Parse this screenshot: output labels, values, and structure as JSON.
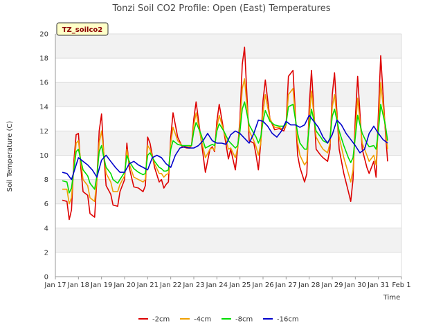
{
  "chart_data": {
    "type": "line",
    "title": "Tonzi Soil CO2 Profile: Open (East) Temperatures",
    "xlabel": "Time",
    "ylabel": "Soil Temperature (C)",
    "ylim": [
      0,
      20
    ],
    "yticks": [
      0,
      2,
      4,
      6,
      8,
      10,
      12,
      14,
      16,
      18,
      20
    ],
    "xlim": [
      0,
      15
    ],
    "xticks": [
      {
        "x": 0,
        "label": "Jan 17"
      },
      {
        "x": 1,
        "label": "Jan 18"
      },
      {
        "x": 2,
        "label": "Jan 19"
      },
      {
        "x": 3,
        "label": "Jan 20"
      },
      {
        "x": 4,
        "label": "Jan 21"
      },
      {
        "x": 5,
        "label": "Jan 22"
      },
      {
        "x": 6,
        "label": "Jan 23"
      },
      {
        "x": 7,
        "label": "Jan 24"
      },
      {
        "x": 8,
        "label": "Jan 25"
      },
      {
        "x": 9,
        "label": "Jan 26"
      },
      {
        "x": 10,
        "label": "Jan 27"
      },
      {
        "x": 11,
        "label": "Jan 28"
      },
      {
        "x": 12,
        "label": "Jan 29"
      },
      {
        "x": 13,
        "label": "Jan 30"
      },
      {
        "x": 14,
        "label": "Jan 31"
      },
      {
        "x": 15,
        "label": "Feb 1"
      }
    ],
    "grid": "horizontal bands",
    "legend_position": "bottom",
    "badge": "TZ_soilco2",
    "series": [
      {
        "name": "-2cm",
        "color": "#dd0000",
        "x": [
          0.3,
          0.5,
          0.6,
          0.7,
          0.8,
          0.9,
          1.0,
          1.1,
          1.2,
          1.4,
          1.5,
          1.7,
          1.8,
          1.9,
          2.0,
          2.1,
          2.2,
          2.4,
          2.5,
          2.7,
          2.8,
          3.0,
          3.1,
          3.2,
          3.4,
          3.6,
          3.8,
          3.9,
          4.0,
          4.1,
          4.3,
          4.5,
          4.6,
          4.7,
          4.8,
          4.9,
          5.0,
          5.1,
          5.3,
          5.5,
          5.7,
          5.8,
          5.9,
          6.0,
          6.1,
          6.3,
          6.5,
          6.7,
          6.8,
          6.9,
          7.0,
          7.1,
          7.3,
          7.5,
          7.6,
          7.8,
          7.9,
          8.0,
          8.1,
          8.2,
          8.4,
          8.6,
          8.7,
          8.8,
          8.9,
          9.0,
          9.1,
          9.3,
          9.5,
          9.7,
          9.8,
          9.9,
          10.0,
          10.1,
          10.3,
          10.5,
          10.6,
          10.8,
          10.9,
          11.0,
          11.1,
          11.3,
          11.5,
          11.6,
          11.8,
          11.9,
          12.0,
          12.1,
          12.3,
          12.5,
          12.7,
          12.8,
          12.9,
          13.0,
          13.1,
          13.3,
          13.5,
          13.6,
          13.8,
          13.9,
          14.0,
          14.1,
          14.3,
          14.4
        ],
        "y": [
          6.3,
          6.2,
          4.7,
          5.5,
          9.5,
          11.7,
          11.8,
          9.0,
          7.0,
          6.7,
          5.2,
          4.9,
          8.0,
          12.0,
          13.4,
          10.0,
          7.5,
          6.8,
          5.9,
          5.8,
          7.0,
          8.0,
          11.0,
          9.0,
          7.4,
          7.3,
          7.0,
          7.5,
          11.5,
          11.0,
          9.0,
          7.8,
          8.0,
          7.3,
          7.6,
          7.8,
          11.5,
          13.5,
          11.5,
          10.7,
          10.6,
          10.6,
          10.8,
          13.0,
          14.4,
          11.5,
          8.6,
          10.5,
          10.7,
          10.3,
          12.8,
          14.2,
          12.0,
          9.7,
          10.5,
          8.8,
          10.5,
          13.0,
          17.5,
          18.9,
          11.2,
          11.0,
          10.0,
          8.8,
          11.0,
          14.5,
          16.2,
          13.0,
          12.1,
          12.2,
          12.1,
          12.0,
          12.5,
          16.5,
          17.0,
          10.0,
          9.0,
          7.8,
          8.5,
          14.0,
          17.0,
          10.5,
          10.0,
          9.8,
          9.5,
          10.5,
          15.0,
          16.8,
          10.5,
          8.5,
          7.0,
          6.2,
          8.0,
          13.0,
          16.5,
          10.5,
          9.0,
          8.5,
          9.5,
          8.2,
          13.5,
          18.2,
          12.0,
          9.5
        ]
      },
      {
        "name": "-4cm",
        "color": "#f0a000",
        "x": [
          0.3,
          0.5,
          0.6,
          0.7,
          0.8,
          0.9,
          1.0,
          1.1,
          1.2,
          1.4,
          1.5,
          1.7,
          1.8,
          1.9,
          2.0,
          2.1,
          2.2,
          2.4,
          2.5,
          2.7,
          2.8,
          3.0,
          3.1,
          3.2,
          3.4,
          3.6,
          3.8,
          3.9,
          4.0,
          4.1,
          4.3,
          4.5,
          4.6,
          4.7,
          4.8,
          4.9,
          5.0,
          5.1,
          5.3,
          5.5,
          5.7,
          5.8,
          5.9,
          6.0,
          6.1,
          6.3,
          6.5,
          6.7,
          6.8,
          6.9,
          7.0,
          7.1,
          7.3,
          7.5,
          7.6,
          7.8,
          7.9,
          8.0,
          8.1,
          8.2,
          8.4,
          8.6,
          8.7,
          8.8,
          8.9,
          9.0,
          9.1,
          9.3,
          9.5,
          9.7,
          9.8,
          9.9,
          10.0,
          10.1,
          10.3,
          10.5,
          10.6,
          10.8,
          10.9,
          11.0,
          11.1,
          11.3,
          11.5,
          11.6,
          11.8,
          11.9,
          12.0,
          12.1,
          12.3,
          12.5,
          12.7,
          12.8,
          12.9,
          13.0,
          13.1,
          13.3,
          13.5,
          13.6,
          13.8,
          13.9,
          14.0,
          14.1,
          14.3,
          14.4
        ],
        "y": [
          7.2,
          7.2,
          6.0,
          6.5,
          9.0,
          11.0,
          11.2,
          9.5,
          8.0,
          7.5,
          6.5,
          6.2,
          8.0,
          11.0,
          12.0,
          10.2,
          8.5,
          7.8,
          7.0,
          7.0,
          7.6,
          8.3,
          10.5,
          9.3,
          8.2,
          8.0,
          7.8,
          8.0,
          10.8,
          10.5,
          9.3,
          8.5,
          8.5,
          8.2,
          8.4,
          8.5,
          11.0,
          12.3,
          11.2,
          10.8,
          10.7,
          10.7,
          10.8,
          12.5,
          13.5,
          11.5,
          9.8,
          10.5,
          10.6,
          10.4,
          12.3,
          13.3,
          12.0,
          10.5,
          10.6,
          9.8,
          10.6,
          12.5,
          15.5,
          16.3,
          12.0,
          11.2,
          10.7,
          10.0,
          11.0,
          13.5,
          15.0,
          13.0,
          12.3,
          12.3,
          12.2,
          12.2,
          12.5,
          15.0,
          15.5,
          11.0,
          10.0,
          9.2,
          9.5,
          13.0,
          15.3,
          11.5,
          10.8,
          10.5,
          10.2,
          11.0,
          14.0,
          15.0,
          11.5,
          9.8,
          8.5,
          7.8,
          8.8,
          12.0,
          14.7,
          11.0,
          10.0,
          9.5,
          10.0,
          9.2,
          12.5,
          16.0,
          12.3,
          10.5
        ]
      },
      {
        "name": "-8cm",
        "color": "#00dd00",
        "x": [
          0.3,
          0.5,
          0.6,
          0.7,
          0.8,
          0.9,
          1.0,
          1.1,
          1.2,
          1.4,
          1.5,
          1.7,
          1.8,
          1.9,
          2.0,
          2.1,
          2.2,
          2.4,
          2.5,
          2.7,
          2.8,
          3.0,
          3.1,
          3.2,
          3.4,
          3.6,
          3.8,
          3.9,
          4.0,
          4.1,
          4.3,
          4.5,
          4.6,
          4.7,
          4.8,
          4.9,
          5.0,
          5.1,
          5.3,
          5.5,
          5.7,
          5.8,
          5.9,
          6.0,
          6.1,
          6.3,
          6.5,
          6.7,
          6.8,
          6.9,
          7.0,
          7.1,
          7.3,
          7.5,
          7.6,
          7.8,
          7.9,
          8.0,
          8.1,
          8.2,
          8.4,
          8.6,
          8.7,
          8.8,
          8.9,
          9.0,
          9.1,
          9.3,
          9.5,
          9.7,
          9.8,
          9.9,
          10.0,
          10.1,
          10.3,
          10.5,
          10.6,
          10.8,
          10.9,
          11.0,
          11.1,
          11.3,
          11.5,
          11.6,
          11.8,
          11.9,
          12.0,
          12.1,
          12.3,
          12.5,
          12.7,
          12.8,
          12.9,
          13.0,
          13.1,
          13.3,
          13.5,
          13.6,
          13.8,
          13.9,
          14.0,
          14.1,
          14.3,
          14.4
        ],
        "y": [
          7.9,
          7.8,
          6.9,
          7.3,
          8.8,
          10.3,
          10.5,
          9.6,
          8.8,
          8.3,
          7.7,
          7.2,
          8.3,
          10.3,
          10.8,
          9.8,
          9.0,
          8.5,
          8.0,
          7.7,
          8.0,
          8.6,
          10.0,
          9.5,
          8.9,
          8.6,
          8.4,
          8.5,
          10.0,
          10.2,
          9.5,
          9.0,
          8.9,
          8.7,
          8.7,
          8.8,
          10.5,
          11.2,
          10.9,
          10.8,
          10.8,
          10.8,
          10.8,
          12.0,
          12.7,
          11.8,
          10.6,
          10.8,
          10.9,
          10.8,
          12.0,
          12.6,
          12.0,
          11.2,
          11.0,
          10.6,
          10.8,
          12.0,
          13.8,
          14.4,
          12.5,
          11.8,
          11.5,
          11.0,
          11.5,
          12.8,
          13.7,
          12.8,
          12.5,
          12.4,
          12.4,
          12.4,
          12.6,
          14.0,
          14.2,
          11.8,
          11.0,
          10.5,
          10.5,
          12.3,
          13.8,
          12.0,
          11.5,
          11.2,
          11.0,
          11.4,
          13.2,
          13.8,
          12.0,
          10.8,
          9.8,
          9.4,
          9.8,
          11.5,
          13.3,
          11.8,
          11.0,
          10.7,
          10.8,
          10.5,
          12.0,
          14.2,
          12.5,
          11.2
        ]
      },
      {
        "name": "-16cm",
        "color": "#0000cc",
        "x": [
          0.3,
          0.5,
          0.7,
          0.9,
          1.0,
          1.2,
          1.4,
          1.6,
          1.8,
          2.0,
          2.2,
          2.4,
          2.6,
          2.8,
          3.0,
          3.2,
          3.4,
          3.6,
          3.8,
          4.0,
          4.2,
          4.4,
          4.6,
          4.8,
          5.0,
          5.2,
          5.4,
          5.6,
          5.8,
          6.0,
          6.2,
          6.4,
          6.6,
          6.8,
          7.0,
          7.2,
          7.4,
          7.6,
          7.8,
          8.0,
          8.2,
          8.4,
          8.6,
          8.8,
          9.0,
          9.2,
          9.4,
          9.6,
          9.8,
          10.0,
          10.2,
          10.4,
          10.6,
          10.8,
          11.0,
          11.2,
          11.4,
          11.6,
          11.8,
          12.0,
          12.2,
          12.4,
          12.6,
          12.8,
          13.0,
          13.2,
          13.4,
          13.6,
          13.8,
          14.0,
          14.2,
          14.4
        ],
        "y": [
          8.6,
          8.5,
          8.0,
          9.2,
          9.8,
          9.5,
          9.2,
          8.8,
          8.2,
          9.6,
          10.0,
          9.5,
          9.0,
          8.6,
          8.6,
          9.3,
          9.5,
          9.2,
          9.0,
          8.8,
          9.8,
          10.0,
          9.8,
          9.3,
          9.0,
          10.0,
          10.6,
          10.7,
          10.6,
          10.6,
          10.8,
          11.2,
          11.8,
          11.2,
          11.0,
          11.0,
          10.9,
          11.7,
          12.0,
          11.8,
          11.4,
          11.0,
          11.8,
          12.9,
          12.8,
          12.4,
          11.8,
          11.5,
          12.0,
          12.8,
          12.5,
          12.5,
          12.3,
          12.5,
          13.3,
          12.8,
          12.3,
          11.5,
          11.0,
          11.7,
          12.9,
          12.5,
          11.8,
          11.3,
          10.8,
          10.2,
          10.5,
          11.8,
          12.4,
          11.8,
          11.3,
          11.0
        ]
      }
    ]
  }
}
